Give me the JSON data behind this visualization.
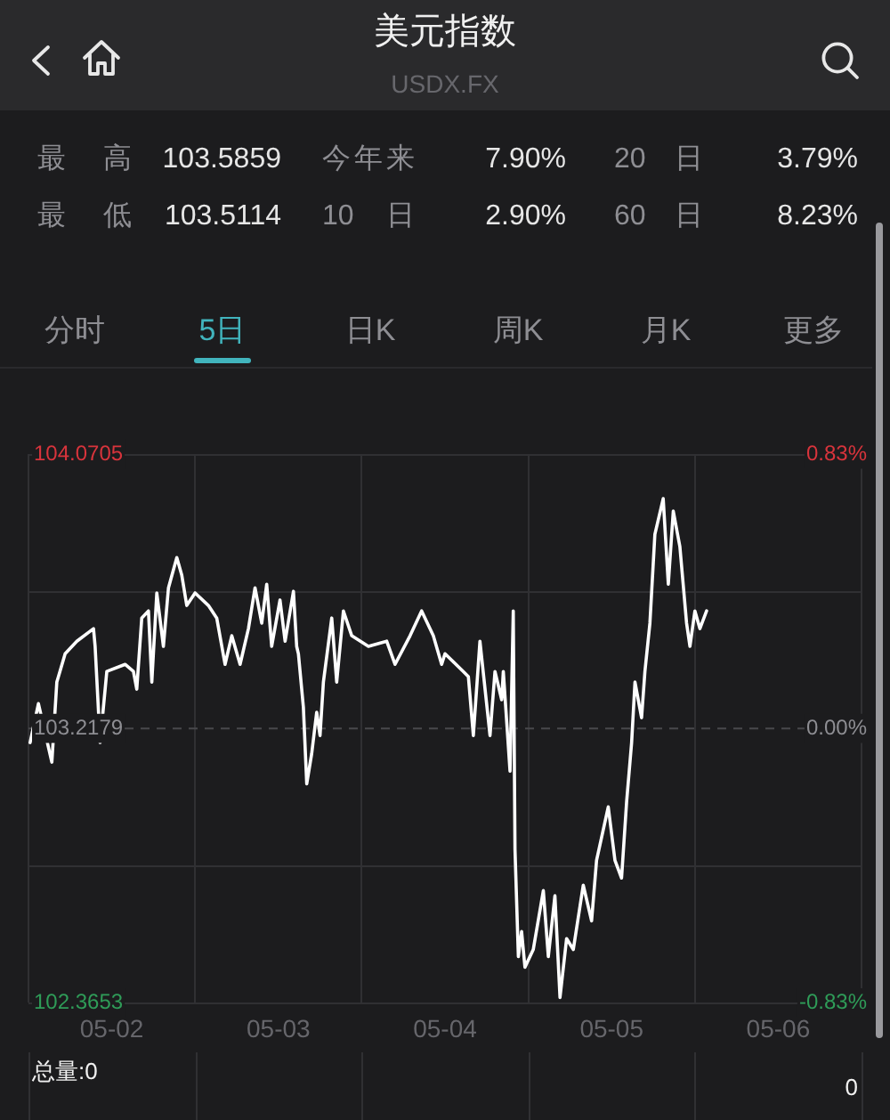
{
  "chart_data": {
    "type": "line",
    "title": "美元指数",
    "subtitle": "USDX.FX",
    "x": [
      "--05-02T00:14",
      "--05-02T01:26",
      "--05-02T03:22",
      "--05-02T04:05",
      "--05-02T05:17",
      "--05-02T06:58",
      "--05-02T09:22",
      "--05-02T09:36",
      "--05-02T10:19",
      "--05-02T11:17",
      "--05-02T13:55",
      "--05-02T15:07",
      "--05-02T15:36",
      "--05-02T16:19",
      "--05-02T17:17",
      "--05-02T17:46",
      "--05-02T18:29",
      "--05-02T19:26",
      "--05-02T20:10",
      "--05-02T21:22",
      "--05-02T22:05",
      "--05-02T22:48",
      "--05-03T00:00",
      "--05-03T01:55",
      "--05-03T03:07",
      "--05-03T04:19",
      "--05-03T05:17",
      "--05-03T06:29",
      "--05-03T07:41",
      "--05-03T08:38",
      "--05-03T09:36",
      "--05-03T10:19",
      "--05-03T11:02",
      "--05-03T12:14",
      "--05-03T12:58",
      "--05-03T14:10",
      "--05-03T14:38",
      "--05-03T14:53",
      "--05-03T15:36",
      "--05-03T16:05",
      "--05-03T16:48",
      "--05-03T17:31",
      "--05-03T18:00",
      "--05-03T18:29",
      "--05-03T19:41",
      "--05-03T20:24",
      "--05-03T21:22",
      "--05-03T22:34",
      "--05-04T00:58",
      "--05-04T03:36",
      "--05-04T04:48",
      "--05-04T06:58",
      "--05-04T08:38",
      "--05-04T10:19",
      "--05-04T11:31",
      "--05-04T12:00",
      "--05-04T14:38",
      "--05-04T15:22",
      "--05-04T16:05",
      "--05-04T17:02",
      "--05-04T18:29",
      "--05-04T19:12",
      "--05-04T20:10",
      "--05-04T20:24",
      "--05-04T21:22",
      "--05-04T21:50",
      "--05-04T22:05",
      "--05-04T22:34",
      "--05-04T23:02",
      "--05-04T23:31",
      "--05-05T00:43",
      "--05-05T02:10",
      "--05-05T02:53",
      "--05-05T03:50",
      "--05-05T04:34",
      "--05-05T05:31",
      "--05-05T06:29",
      "--05-05T07:55",
      "--05-05T09:07",
      "--05-05T09:50",
      "--05-05T11:31",
      "--05-05T12:29",
      "--05-05T13:26",
      "--05-05T14:10",
      "--05-05T14:53",
      "--05-05T15:22",
      "--05-05T16:19",
      "--05-05T16:48",
      "--05-05T17:31",
      "--05-05T18:14",
      "--05-05T19:26",
      "--05-05T20:10",
      "--05-05T20:53",
      "--05-05T21:50",
      "--05-05T22:48",
      "--05-05T23:17",
      "--05-06T00:00",
      "--05-06T00:43",
      "--05-06T01:41"
    ],
    "values": [
      103.174,
      103.295,
      103.113,
      103.362,
      103.45,
      103.489,
      103.528,
      103.473,
      103.174,
      103.395,
      103.417,
      103.395,
      103.34,
      103.561,
      103.583,
      103.362,
      103.639,
      103.473,
      103.655,
      103.749,
      103.694,
      103.6,
      103.639,
      103.6,
      103.561,
      103.417,
      103.506,
      103.417,
      103.528,
      103.655,
      103.545,
      103.666,
      103.473,
      103.617,
      103.489,
      103.644,
      103.473,
      103.45,
      103.284,
      103.046,
      103.14,
      103.268,
      103.196,
      103.362,
      103.561,
      103.362,
      103.583,
      103.506,
      103.473,
      103.489,
      103.417,
      103.506,
      103.583,
      103.506,
      103.417,
      103.45,
      103.395,
      103.379,
      103.196,
      103.489,
      103.196,
      103.395,
      103.307,
      103.395,
      103.085,
      103.583,
      102.842,
      102.509,
      102.587,
      102.476,
      102.531,
      102.714,
      102.509,
      102.698,
      102.382,
      102.565,
      102.531,
      102.731,
      102.62,
      102.808,
      102.974,
      102.808,
      102.753,
      102.991,
      103.174,
      103.362,
      103.251,
      103.395,
      103.545,
      103.821,
      103.932,
      103.666,
      103.893,
      103.783,
      103.545,
      103.473,
      103.583,
      103.528,
      103.583
    ],
    "color": "#ffffff",
    "xlim": [
      "--05-02",
      "--05-07"
    ],
    "xticks": [
      {
        "value": "--05-02",
        "label": null
      },
      {
        "value": "--05-02T12:00",
        "label": "05-02"
      },
      {
        "value": "--05-03",
        "label": null
      },
      {
        "value": "--05-03T12:00",
        "label": "05-03"
      },
      {
        "value": "--05-04",
        "label": null
      },
      {
        "value": "--05-04T12:00",
        "label": "05-04"
      },
      {
        "value": "--05-05",
        "label": null
      },
      {
        "value": "--05-05T12:00",
        "label": "05-05"
      },
      {
        "value": "--05-06",
        "label": null
      },
      {
        "value": "--05-06T12:00",
        "label": "05-06"
      },
      {
        "value": "--05-07",
        "label": null
      }
    ],
    "ylim": [
      102.3653,
      104.0705
    ],
    "yticks": [
      102.3653,
      {
        "value": 102.7916,
        "label": null
      },
      103.2179,
      {
        "value": 103.6442,
        "label": null
      },
      104.0705
    ],
    "y2lim": [
      -0.83,
      0.83
    ],
    "y2ticks": [
      {
        "value": -0.83,
        "label": "-0.83%"
      },
      {
        "value": 0,
        "label": "0.00%"
      },
      {
        "value": 0.83,
        "label": "0.83%"
      }
    ],
    "ref_lines": [
      {
        "axis": "y",
        "value": 103.2179,
        "color": "#48484c",
        "line_style": "dashed"
      }
    ],
    "grid": true,
    "annotations": [
      "最 高",
      "103.5859",
      "今年来",
      "7.90%",
      "20 日",
      "3.79%",
      "最 低",
      "103.5114",
      "10 日",
      "2.90%",
      "60 日",
      "8.23%",
      "分时",
      "5日",
      "日K",
      "周K",
      "月K",
      "更多",
      "总量:0",
      "0"
    ]
  }
}
